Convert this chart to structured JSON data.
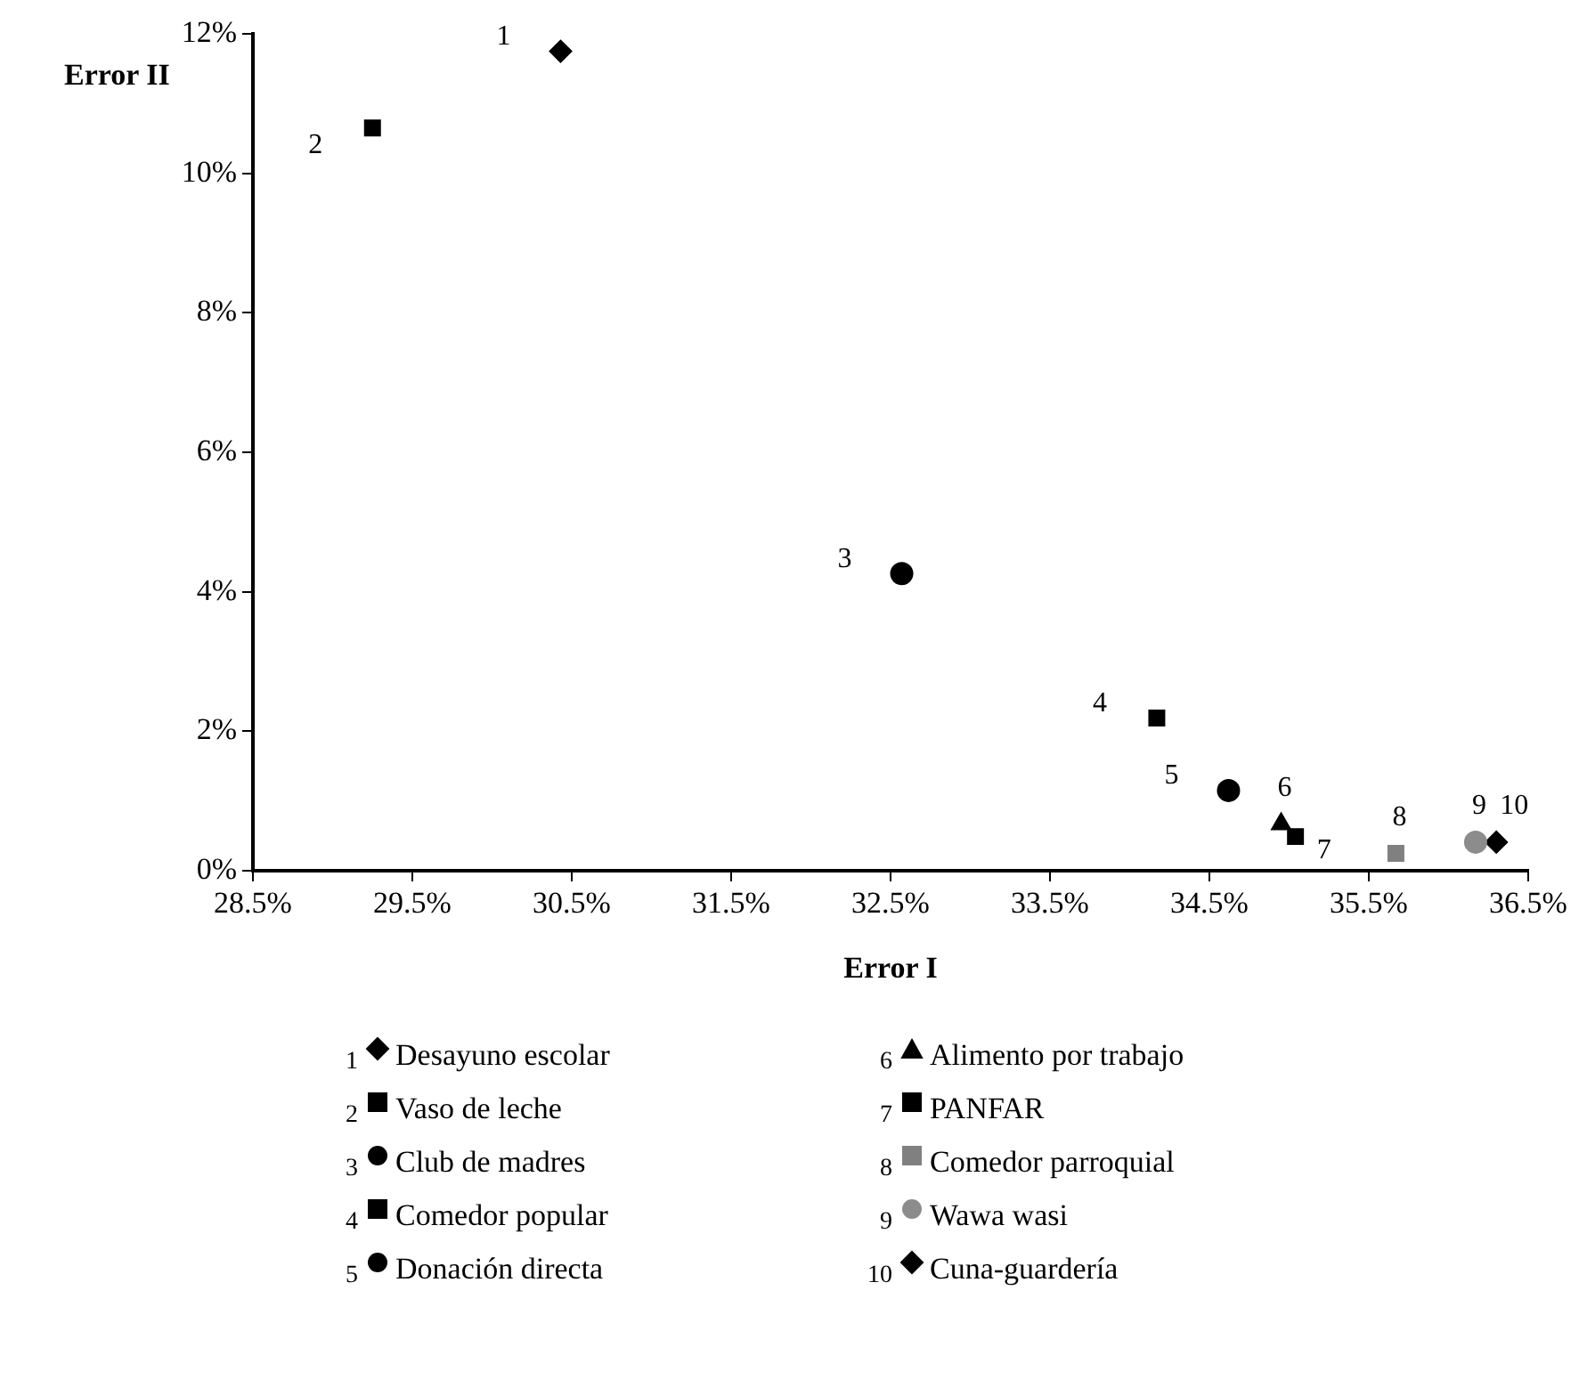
{
  "chart_data": {
    "type": "scatter",
    "xlabel": "Error I",
    "ylabel": "Error II",
    "xlim": [
      28.5,
      36.5
    ],
    "ylim": [
      0,
      12
    ],
    "xticks": [
      {
        "value": 28.5,
        "label": "28.5%"
      },
      {
        "value": 29.5,
        "label": "29.5%"
      },
      {
        "value": 30.5,
        "label": "30.5%"
      },
      {
        "value": 31.5,
        "label": "31.5%"
      },
      {
        "value": 32.5,
        "label": "32.5%"
      },
      {
        "value": 33.5,
        "label": "33.5%"
      },
      {
        "value": 34.5,
        "label": "34.5%"
      },
      {
        "value": 35.5,
        "label": "35.5%"
      },
      {
        "value": 36.5,
        "label": "36.5%"
      }
    ],
    "yticks": [
      {
        "value": 0,
        "label": "0%"
      },
      {
        "value": 2,
        "label": "2%"
      },
      {
        "value": 4,
        "label": "4%"
      },
      {
        "value": 6,
        "label": "6%"
      },
      {
        "value": 8,
        "label": "8%"
      },
      {
        "value": 10,
        "label": "10%"
      },
      {
        "value": 12,
        "label": "12%"
      }
    ],
    "grid": false,
    "legend": "bottom",
    "series": [
      {
        "name": "Desayuno escolar",
        "color": "#000000",
        "marker": "diamond",
        "x": [
          30.43
        ],
        "values": [
          11.75
        ]
      },
      {
        "name": "Vaso de leche",
        "color": "#000000",
        "marker": "square",
        "x": [
          29.25
        ],
        "values": [
          10.65
        ]
      },
      {
        "name": "Club de madres",
        "color": "#000000",
        "marker": "circle",
        "x": [
          32.57
        ],
        "values": [
          4.26
        ]
      },
      {
        "name": "Comedor popular",
        "color": "#000000",
        "marker": "square",
        "x": [
          34.17
        ],
        "values": [
          2.19
        ]
      },
      {
        "name": "Donación directa",
        "color": "#000000",
        "marker": "circle",
        "x": [
          34.62
        ],
        "values": [
          1.15
        ]
      },
      {
        "name": "Alimento por trabajo",
        "color": "#000000",
        "marker": "triangle",
        "x": [
          34.95
        ],
        "values": [
          0.67
        ]
      },
      {
        "name": "PANFAR",
        "color": "#000000",
        "marker": "square",
        "x": [
          35.04
        ],
        "values": [
          0.49
        ]
      },
      {
        "name": "Comedor parroquial",
        "color": "#808080",
        "marker": "square",
        "x": [
          35.67
        ],
        "values": [
          0.25
        ]
      },
      {
        "name": "Wawa wasi",
        "color": "#8c8c8c",
        "marker": "circle",
        "x": [
          36.17
        ],
        "values": [
          0.41
        ]
      },
      {
        "name": "Cuna-guardería",
        "color": "#000000",
        "marker": "diamond",
        "x": [
          36.3
        ],
        "values": [
          0.41
        ]
      }
    ],
    "annotations": [
      {
        "text": "1",
        "x": 30.43,
        "y": 11.75
      },
      {
        "text": "2",
        "x": 29.25,
        "y": 10.65
      },
      {
        "text": "3",
        "x": 32.57,
        "y": 4.26
      },
      {
        "text": "4",
        "x": 34.17,
        "y": 2.19
      },
      {
        "text": "5",
        "x": 34.62,
        "y": 1.15
      },
      {
        "text": "6",
        "x": 34.95,
        "y": 0.67
      },
      {
        "text": "7",
        "x": 35.04,
        "y": 0.49
      },
      {
        "text": "8",
        "x": 35.67,
        "y": 0.25
      },
      {
        "text": "9",
        "x": 36.17,
        "y": 0.41
      },
      {
        "text": "10",
        "x": 36.3,
        "y": 0.41
      }
    ]
  }
}
